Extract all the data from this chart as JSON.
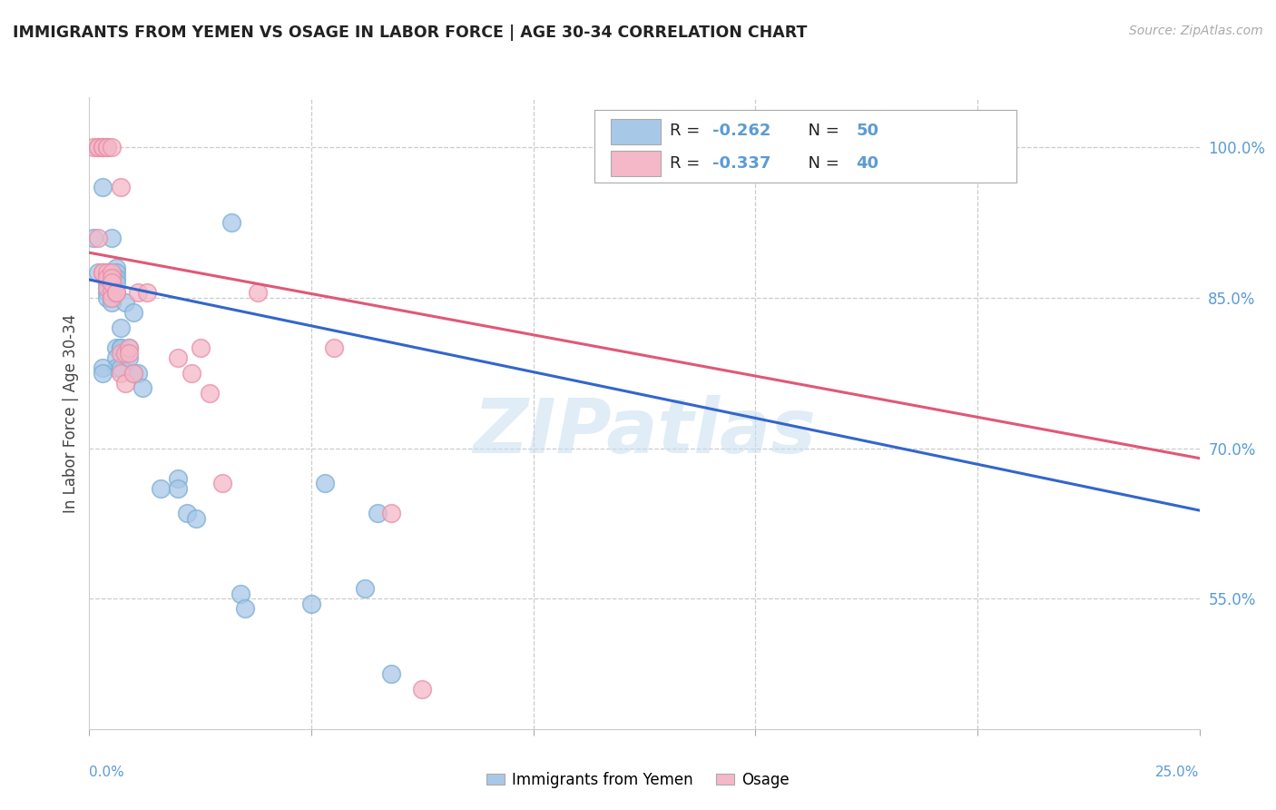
{
  "title": "IMMIGRANTS FROM YEMEN VS OSAGE IN LABOR FORCE | AGE 30-34 CORRELATION CHART",
  "source": "Source: ZipAtlas.com",
  "ylabel": "In Labor Force | Age 30-34",
  "ytick_labels": [
    "100.0%",
    "85.0%",
    "70.0%",
    "55.0%"
  ],
  "ytick_values": [
    1.0,
    0.85,
    0.7,
    0.55
  ],
  "xlim": [
    0.0,
    0.25
  ],
  "ylim": [
    0.42,
    1.05
  ],
  "legend_r_blue": "R = -0.262",
  "legend_n_blue": "N = 50",
  "legend_r_pink": "R = -0.337",
  "legend_n_pink": "N = 40",
  "legend_label_blue": "Immigrants from Yemen",
  "legend_label_pink": "Osage",
  "blue_color": "#a8c8e8",
  "pink_color": "#f4b8c8",
  "blue_edge_color": "#7bafd4",
  "pink_edge_color": "#e890a8",
  "blue_line_color": "#3366cc",
  "pink_line_color": "#e05878",
  "watermark": "ZIPatlas",
  "blue_scatter": [
    [
      0.001,
      0.91
    ],
    [
      0.002,
      0.875
    ],
    [
      0.003,
      0.96
    ],
    [
      0.004,
      0.875
    ],
    [
      0.004,
      0.87
    ],
    [
      0.004,
      0.865
    ],
    [
      0.004,
      0.86
    ],
    [
      0.004,
      0.855
    ],
    [
      0.004,
      0.85
    ],
    [
      0.005,
      0.875
    ],
    [
      0.005,
      0.87
    ],
    [
      0.005,
      0.865
    ],
    [
      0.005,
      0.86
    ],
    [
      0.005,
      0.855
    ],
    [
      0.005,
      0.85
    ],
    [
      0.005,
      0.845
    ],
    [
      0.006,
      0.88
    ],
    [
      0.006,
      0.875
    ],
    [
      0.006,
      0.87
    ],
    [
      0.006,
      0.865
    ],
    [
      0.006,
      0.8
    ],
    [
      0.006,
      0.79
    ],
    [
      0.006,
      0.78
    ],
    [
      0.007,
      0.82
    ],
    [
      0.007,
      0.8
    ],
    [
      0.007,
      0.8
    ],
    [
      0.007,
      0.78
    ],
    [
      0.008,
      0.845
    ],
    [
      0.009,
      0.8
    ],
    [
      0.009,
      0.79
    ],
    [
      0.01,
      0.835
    ],
    [
      0.01,
      0.775
    ],
    [
      0.011,
      0.775
    ],
    [
      0.012,
      0.76
    ],
    [
      0.016,
      0.66
    ],
    [
      0.02,
      0.67
    ],
    [
      0.02,
      0.66
    ],
    [
      0.022,
      0.635
    ],
    [
      0.024,
      0.63
    ],
    [
      0.032,
      0.925
    ],
    [
      0.034,
      0.555
    ],
    [
      0.035,
      0.54
    ],
    [
      0.05,
      0.545
    ],
    [
      0.053,
      0.665
    ],
    [
      0.062,
      0.56
    ],
    [
      0.065,
      0.635
    ],
    [
      0.068,
      0.475
    ],
    [
      0.003,
      0.78
    ],
    [
      0.003,
      0.775
    ],
    [
      0.005,
      0.91
    ]
  ],
  "pink_scatter": [
    [
      0.001,
      1.0
    ],
    [
      0.002,
      1.0
    ],
    [
      0.002,
      1.0
    ],
    [
      0.003,
      1.0
    ],
    [
      0.003,
      1.0
    ],
    [
      0.004,
      1.0
    ],
    [
      0.004,
      1.0
    ],
    [
      0.005,
      1.0
    ],
    [
      0.007,
      0.96
    ],
    [
      0.002,
      0.91
    ],
    [
      0.003,
      0.875
    ],
    [
      0.003,
      0.875
    ],
    [
      0.004,
      0.86
    ],
    [
      0.004,
      0.875
    ],
    [
      0.004,
      0.87
    ],
    [
      0.005,
      0.855
    ],
    [
      0.005,
      0.85
    ],
    [
      0.005,
      0.875
    ],
    [
      0.005,
      0.87
    ],
    [
      0.005,
      0.865
    ],
    [
      0.006,
      0.855
    ],
    [
      0.006,
      0.855
    ],
    [
      0.007,
      0.795
    ],
    [
      0.007,
      0.775
    ],
    [
      0.008,
      0.795
    ],
    [
      0.008,
      0.765
    ],
    [
      0.009,
      0.8
    ],
    [
      0.009,
      0.795
    ],
    [
      0.01,
      0.775
    ],
    [
      0.011,
      0.855
    ],
    [
      0.013,
      0.855
    ],
    [
      0.02,
      0.79
    ],
    [
      0.023,
      0.775
    ],
    [
      0.025,
      0.8
    ],
    [
      0.027,
      0.755
    ],
    [
      0.03,
      0.665
    ],
    [
      0.038,
      0.855
    ],
    [
      0.055,
      0.8
    ],
    [
      0.068,
      0.635
    ],
    [
      0.075,
      0.46
    ]
  ],
  "blue_trendline": [
    [
      0.0,
      0.868
    ],
    [
      0.25,
      0.638
    ]
  ],
  "pink_trendline": [
    [
      0.0,
      0.895
    ],
    [
      0.25,
      0.69
    ]
  ]
}
